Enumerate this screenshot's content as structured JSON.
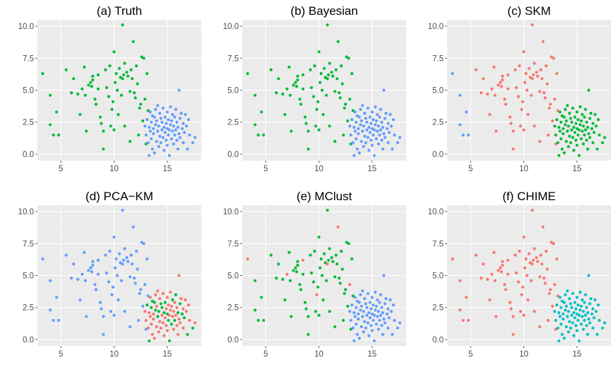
{
  "chart_data": [
    {
      "type": "scatter",
      "title": "(a) Truth",
      "xticks": [
        "5",
        "10",
        "15"
      ],
      "yticks": [
        "0.0",
        "2.5",
        "5.0",
        "7.5",
        "10.0"
      ],
      "xlim": [
        2.8,
        18.2
      ],
      "ylim": [
        -0.5,
        10.5
      ],
      "colors": {
        "r": "#f8766d",
        "g": "#00ba38",
        "b": "#619cff",
        "c": "#00bfc4"
      },
      "grid": true,
      "points": []
    },
    {
      "type": "scatter",
      "title": "(b) Bayesian",
      "xticks": [
        "5",
        "10",
        "15"
      ],
      "yticks": [
        "0.0",
        "2.5",
        "5.0",
        "7.5",
        "10.0"
      ],
      "xlim": [
        2.8,
        18.2
      ],
      "ylim": [
        -0.5,
        10.5
      ],
      "colors": {
        "r": "#f8766d",
        "g": "#00ba38",
        "b": "#619cff",
        "c": "#00bfc4"
      },
      "grid": true,
      "points": []
    },
    {
      "type": "scatter",
      "title": "(c) SKM",
      "xticks": [
        "5",
        "10",
        "15"
      ],
      "yticks": [
        "0.0",
        "2.5",
        "5.0",
        "7.5",
        "10.0"
      ],
      "xlim": [
        2.8,
        18.2
      ],
      "ylim": [
        -0.5,
        10.5
      ],
      "colors": {
        "r": "#f8766d",
        "g": "#00ba38",
        "b": "#619cff",
        "c": "#00bfc4"
      },
      "grid": true,
      "points": []
    },
    {
      "type": "scatter",
      "title": "(d) PCA−KM",
      "xticks": [
        "5",
        "10",
        "15"
      ],
      "yticks": [
        "0.0",
        "2.5",
        "5.0",
        "7.5",
        "10.0"
      ],
      "xlim": [
        2.8,
        18.2
      ],
      "ylim": [
        -0.5,
        10.5
      ],
      "colors": {
        "r": "#f8766d",
        "g": "#00ba38",
        "b": "#619cff",
        "c": "#00bfc4"
      },
      "grid": true,
      "points": []
    },
    {
      "type": "scatter",
      "title": "(e) MClust",
      "xticks": [
        "5",
        "10",
        "15"
      ],
      "yticks": [
        "0.0",
        "2.5",
        "5.0",
        "7.5",
        "10.0"
      ],
      "xlim": [
        2.8,
        18.2
      ],
      "ylim": [
        -0.5,
        10.5
      ],
      "colors": {
        "r": "#f8766d",
        "g": "#00ba38",
        "b": "#619cff",
        "c": "#00bfc4"
      },
      "grid": true,
      "points": []
    },
    {
      "type": "scatter",
      "title": "(f) CHIME",
      "xticks": [
        "5",
        "10",
        "15"
      ],
      "yticks": [
        "0.0",
        "2.5",
        "5.0",
        "7.5",
        "10.0"
      ],
      "xlim": [
        2.8,
        18.2
      ],
      "ylim": [
        -0.5,
        10.5
      ],
      "colors": {
        "r": "#f8766d",
        "g": "#00ba38",
        "b": "#619cff",
        "c": "#00bfc4"
      },
      "grid": true,
      "points": []
    }
  ],
  "base_points": [
    [
      3.3,
      6.3,
      "r"
    ],
    [
      4,
      4.6,
      "r"
    ],
    [
      4,
      2.3,
      "r"
    ],
    [
      4.3,
      1.5,
      "r"
    ],
    [
      4.6,
      3.3,
      "r"
    ],
    [
      4.8,
      1.5,
      "r"
    ],
    [
      5.5,
      6.6,
      "g"
    ],
    [
      6,
      4.8,
      "g"
    ],
    [
      6.2,
      5.9,
      "g"
    ],
    [
      6.6,
      4.7,
      "g"
    ],
    [
      6.8,
      3.1,
      "g"
    ],
    [
      7,
      5.1,
      "g"
    ],
    [
      7.2,
      6.8,
      "g"
    ],
    [
      7.3,
      4.6,
      "g"
    ],
    [
      7.4,
      1.8,
      "g"
    ],
    [
      7.6,
      5.4,
      "g"
    ],
    [
      7.8,
      5.6,
      "g"
    ],
    [
      7.9,
      5.3,
      "g"
    ],
    [
      8,
      5.8,
      "g"
    ],
    [
      8,
      6.1,
      "g"
    ],
    [
      8.2,
      4.3,
      "g"
    ],
    [
      8.3,
      3.9,
      "g"
    ],
    [
      8.5,
      6.2,
      "g"
    ],
    [
      8.5,
      5.1,
      "g"
    ],
    [
      8.7,
      2.9,
      "g"
    ],
    [
      8.8,
      2.4,
      "g"
    ],
    [
      9,
      1.8,
      "g"
    ],
    [
      9,
      0.4,
      "g"
    ],
    [
      9.2,
      6.6,
      "g"
    ],
    [
      9.3,
      5.2,
      "g"
    ],
    [
      9.5,
      4.5,
      "g"
    ],
    [
      9.6,
      6.9,
      "g"
    ],
    [
      9.7,
      2.2,
      "g"
    ],
    [
      9.8,
      3.5,
      "g"
    ],
    [
      9.9,
      4.1,
      "g"
    ],
    [
      10,
      1.9,
      "g"
    ],
    [
      10,
      8,
      "g"
    ],
    [
      10.1,
      5.6,
      "g"
    ],
    [
      10.2,
      6.3,
      "g"
    ],
    [
      10.3,
      5,
      "g"
    ],
    [
      10.4,
      3.1,
      "g"
    ],
    [
      10.5,
      6.7,
      "g"
    ],
    [
      10.6,
      6,
      "g"
    ],
    [
      10.7,
      4.6,
      "g"
    ],
    [
      10.8,
      5.9,
      "g"
    ],
    [
      10.8,
      10.1,
      "g"
    ],
    [
      10.9,
      6.2,
      "g"
    ],
    [
      11,
      7.1,
      "g"
    ],
    [
      11,
      2.2,
      "g"
    ],
    [
      11.2,
      6.4,
      "g"
    ],
    [
      11.3,
      6.1,
      "g"
    ],
    [
      11.5,
      4.9,
      "g"
    ],
    [
      11.5,
      1,
      "g"
    ],
    [
      11.6,
      6.6,
      "g"
    ],
    [
      11.7,
      5.9,
      "g"
    ],
    [
      11.8,
      8.8,
      "g"
    ],
    [
      11.9,
      4.8,
      "g"
    ],
    [
      12,
      4.4,
      "g"
    ],
    [
      12.1,
      6.9,
      "g"
    ],
    [
      12.2,
      5.5,
      "g"
    ],
    [
      12.3,
      1.5,
      "g"
    ],
    [
      12.4,
      3.6,
      "g"
    ],
    [
      12.5,
      3.9,
      "g"
    ],
    [
      12.6,
      7.6,
      "g"
    ],
    [
      12.7,
      2.6,
      "g"
    ],
    [
      12.8,
      7.5,
      "g"
    ],
    [
      12.9,
      4.3,
      "g"
    ],
    [
      13,
      0.8,
      "g"
    ],
    [
      13.1,
      6.3,
      "g"
    ],
    [
      13.2,
      3.4,
      "g"
    ],
    [
      12.9,
      2.2,
      "b"
    ],
    [
      13,
      1.5,
      "b"
    ],
    [
      13.1,
      2.7,
      "b"
    ],
    [
      13.2,
      0.9,
      "b"
    ],
    [
      13.3,
      2.1,
      "b"
    ],
    [
      13.3,
      -0.1,
      "b"
    ],
    [
      13.4,
      1.8,
      "b"
    ],
    [
      13.4,
      3.3,
      "b"
    ],
    [
      13.5,
      2.5,
      "b"
    ],
    [
      13.5,
      1.2,
      "b"
    ],
    [
      13.6,
      0.4,
      "b"
    ],
    [
      13.6,
      3,
      "b"
    ],
    [
      13.7,
      2,
      "b"
    ],
    [
      13.7,
      1.6,
      "b"
    ],
    [
      13.8,
      2.9,
      "b"
    ],
    [
      13.8,
      0.1,
      "b"
    ],
    [
      13.9,
      3.5,
      "b"
    ],
    [
      13.9,
      2.3,
      "b"
    ],
    [
      14,
      1,
      "b"
    ],
    [
      14,
      2.6,
      "b"
    ],
    [
      14.1,
      1.8,
      "b"
    ],
    [
      14.1,
      3.8,
      "b"
    ],
    [
      14.2,
      0.6,
      "b"
    ],
    [
      14.2,
      2.2,
      "b"
    ],
    [
      14.3,
      1.4,
      "b"
    ],
    [
      14.3,
      3.2,
      "b"
    ],
    [
      14.4,
      2.8,
      "b"
    ],
    [
      14.4,
      0.9,
      "b"
    ],
    [
      14.5,
      1.9,
      "b"
    ],
    [
      14.5,
      2.5,
      "b"
    ],
    [
      14.6,
      1.3,
      "b"
    ],
    [
      14.6,
      3.6,
      "b"
    ],
    [
      14.7,
      2.1,
      "b"
    ],
    [
      14.7,
      0.3,
      "b"
    ],
    [
      14.8,
      1.7,
      "b"
    ],
    [
      14.8,
      2.9,
      "b"
    ],
    [
      14.9,
      1.1,
      "b"
    ],
    [
      14.9,
      2.4,
      "b"
    ],
    [
      15,
      2,
      "b"
    ],
    [
      15,
      3.3,
      "b"
    ],
    [
      15,
      0.7,
      "b"
    ],
    [
      15.1,
      1.5,
      "b"
    ],
    [
      15.1,
      2.7,
      "b"
    ],
    [
      15.2,
      1.9,
      "b"
    ],
    [
      15.2,
      -0.1,
      "b"
    ],
    [
      15.3,
      2.3,
      "b"
    ],
    [
      15.3,
      3.7,
      "b"
    ],
    [
      15.4,
      1.2,
      "b"
    ],
    [
      15.4,
      2.6,
      "b"
    ],
    [
      15.5,
      1.8,
      "b"
    ],
    [
      15.5,
      3.1,
      "b"
    ],
    [
      15.6,
      0.8,
      "b"
    ],
    [
      15.6,
      2.2,
      "b"
    ],
    [
      15.7,
      1.5,
      "b"
    ],
    [
      15.7,
      2.9,
      "b"
    ],
    [
      15.8,
      1.9,
      "b"
    ],
    [
      15.8,
      3.5,
      "b"
    ],
    [
      15.9,
      1.1,
      "b"
    ],
    [
      15.9,
      2.5,
      "b"
    ],
    [
      16,
      2.1,
      "b"
    ],
    [
      16,
      0.4,
      "b"
    ],
    [
      16.1,
      1.6,
      "b"
    ],
    [
      16.2,
      2.8,
      "b"
    ],
    [
      16.2,
      1.3,
      "b"
    ],
    [
      16.3,
      3.2,
      "b"
    ],
    [
      16.4,
      2,
      "b"
    ],
    [
      16.5,
      0.9,
      "b"
    ],
    [
      16.5,
      2.4,
      "b"
    ],
    [
      16.6,
      1.7,
      "b"
    ],
    [
      16.7,
      3.1,
      "b"
    ],
    [
      16.8,
      2.2,
      "b"
    ],
    [
      16.9,
      0.4,
      "b"
    ],
    [
      17,
      2.7,
      "b"
    ],
    [
      17.1,
      1.5,
      "b"
    ],
    [
      17.4,
      0.9,
      "b"
    ],
    [
      17.6,
      1.3,
      "b"
    ],
    [
      16.1,
      5,
      "b"
    ]
  ]
}
